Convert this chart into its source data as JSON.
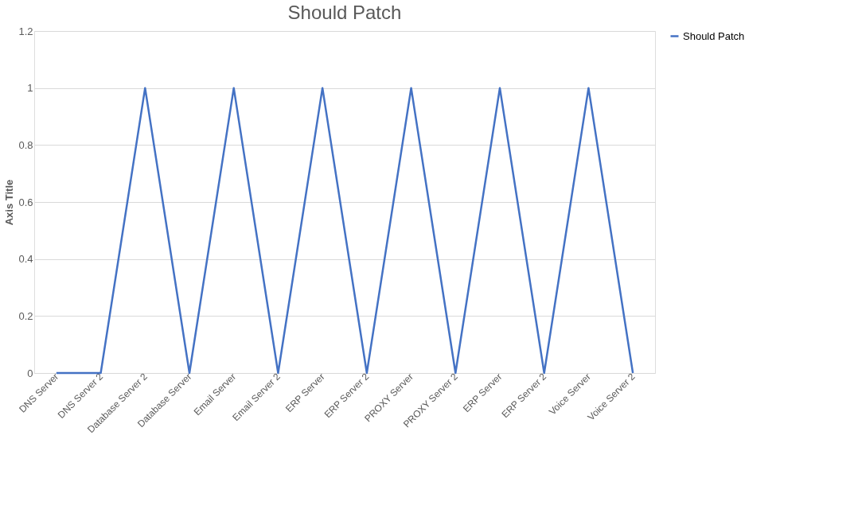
{
  "chart_data": {
    "type": "line",
    "title": "Should Patch",
    "ylabel": "Axis Title",
    "categories": [
      "DNS Server",
      "DNS Server 2",
      "Database Server 2",
      "Database Server",
      "Email Server",
      "Email Server 2",
      "ERP Server",
      "ERP Server 2",
      "PROXY Server",
      "PROXY Server 2",
      "ERP Server",
      "ERP Server 2",
      "Voice Server",
      "Voice Server 2"
    ],
    "series": [
      {
        "name": "Should Patch",
        "color": "#4472c4",
        "values": [
          0,
          0,
          1,
          0,
          1,
          0,
          1,
          0,
          1,
          0,
          1,
          0,
          1,
          0
        ]
      }
    ],
    "ylim": [
      0,
      1.2
    ],
    "yticks": [
      0,
      0.2,
      0.4,
      0.6,
      0.8,
      1,
      1.2
    ],
    "grid": "y",
    "legend": "right",
    "marker": "none",
    "line_style": "solid"
  }
}
